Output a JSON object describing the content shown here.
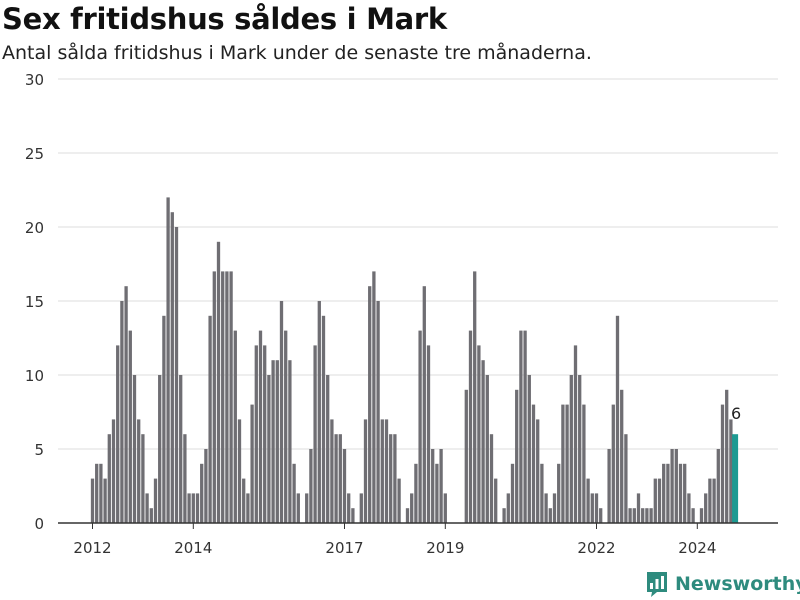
{
  "title": "Sex fritidshus såldes i Mark",
  "subtitle": "Antal sålda fritidshus i Mark under de senaste tre månaderna.",
  "brand": {
    "name": "Newsworthy",
    "icon": "newsworthy-logo-icon"
  },
  "colors": {
    "bar": "#6f6e73",
    "highlight": "#1d9a92",
    "grid": "#dddddd",
    "axis": "#333333",
    "brand": "#2e8b7e"
  },
  "chart_data": {
    "type": "bar",
    "title": "Sex fritidshus såldes i Mark",
    "subtitle": "Antal sålda fritidshus i Mark under de senaste tre månaderna.",
    "xlabel": "",
    "ylabel": "",
    "ylim": [
      0,
      30
    ],
    "yticks": [
      0,
      5,
      10,
      15,
      20,
      25,
      30
    ],
    "grid": true,
    "legend": "none",
    "x_start": "2012-01",
    "interval": "month",
    "xticks": [
      {
        "label": "2012",
        "index": 0
      },
      {
        "label": "2014",
        "index": 24
      },
      {
        "label": "2017",
        "index": 60
      },
      {
        "label": "2019",
        "index": 84
      },
      {
        "label": "2022",
        "index": 120
      },
      {
        "label": "2024",
        "index": 144
      }
    ],
    "values": [
      3,
      4,
      4,
      3,
      6,
      7,
      12,
      15,
      16,
      13,
      10,
      7,
      6,
      2,
      1,
      3,
      10,
      14,
      22,
      21,
      20,
      10,
      6,
      2,
      2,
      2,
      4,
      5,
      14,
      17,
      19,
      17,
      17,
      17,
      13,
      7,
      3,
      2,
      8,
      12,
      13,
      12,
      10,
      11,
      11,
      15,
      13,
      11,
      4,
      2,
      0,
      2,
      5,
      12,
      15,
      14,
      10,
      7,
      6,
      6,
      5,
      2,
      1,
      0,
      2,
      7,
      16,
      17,
      15,
      7,
      7,
      6,
      6,
      3,
      0,
      1,
      2,
      4,
      13,
      16,
      12,
      5,
      4,
      5,
      2,
      0,
      0,
      0,
      0,
      9,
      13,
      17,
      12,
      11,
      10,
      6,
      3,
      0,
      1,
      2,
      4,
      9,
      13,
      13,
      10,
      8,
      7,
      4,
      2,
      1,
      2,
      4,
      8,
      8,
      10,
      12,
      10,
      8,
      3,
      2,
      2,
      1,
      0,
      5,
      8,
      14,
      9,
      6,
      1,
      1,
      2,
      1,
      1,
      1,
      3,
      3,
      4,
      4,
      5,
      5,
      4,
      4,
      2,
      1,
      0,
      1,
      2,
      3,
      3,
      5,
      8,
      9,
      7,
      6
    ],
    "highlight_index": 153,
    "highlight_label": "6"
  }
}
